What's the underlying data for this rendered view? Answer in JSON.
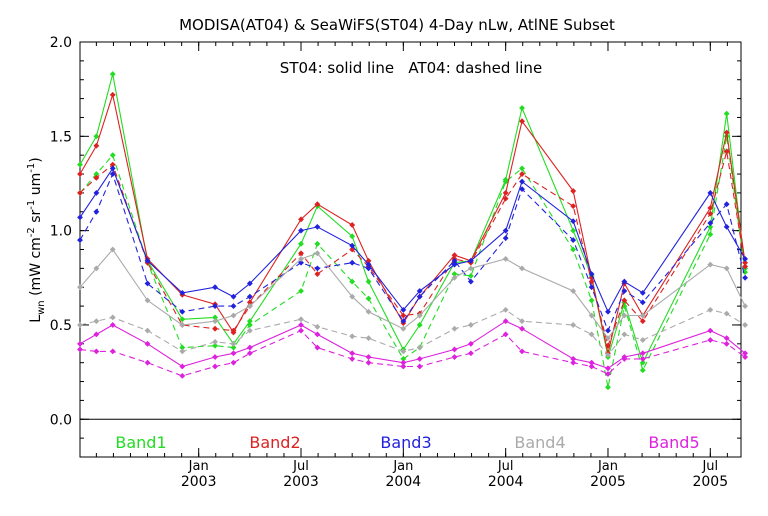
{
  "chart_data": {
    "type": "line",
    "title": "MODISA(AT04) & SeaWiFS(ST04) 4-Day nLw, AtlNE Subset",
    "annotation": "ST04: solid line   AT04: dashed line",
    "ylabel": "L_wn (mW cm^-2 sr^-1 um^-1)",
    "ylabel_parts": {
      "main": "L",
      "sub": "wn",
      "open": " (mW cm",
      "exp1": "-2",
      "mid": " sr",
      "exp2": "-1",
      "um": " um",
      "exp3": "-1",
      "close": ")"
    },
    "xlim": [
      2002.42,
      2005.65
    ],
    "ylim": [
      -0.2,
      2.0
    ],
    "yticks": [
      "0.0",
      "0.5",
      "1.0",
      "1.5",
      "2.0"
    ],
    "ytick_values": [
      0.0,
      0.5,
      1.0,
      1.5,
      2.0
    ],
    "xticks": [
      {
        "value": 2003.0,
        "month": "Jan",
        "year": "2003"
      },
      {
        "value": 2003.5,
        "month": "Jul",
        "year": "2003"
      },
      {
        "value": 2004.0,
        "month": "Jan",
        "year": "2004"
      },
      {
        "value": 2004.5,
        "month": "Jul",
        "year": "2004"
      },
      {
        "value": 2005.0,
        "month": "Jan",
        "year": "2005"
      },
      {
        "value": 2005.5,
        "month": "Jul",
        "year": "2005"
      }
    ],
    "zero_line": 0.0,
    "legend": "bottom-inside",
    "colors": {
      "Band1": "#22dd22",
      "Band2": "#dd2222",
      "Band3": "#2222dd",
      "Band4": "#aaaaaa",
      "Band5": "#dd22dd"
    },
    "series": [
      {
        "name": "Band1",
        "sensor": "ST04",
        "style": "solid",
        "x": [
          2002.42,
          2002.5,
          2002.58,
          2002.75,
          2002.92,
          2003.08,
          2003.17,
          2003.25,
          2003.5,
          2003.58,
          2003.75,
          2003.83,
          2004.0,
          2004.08,
          2004.25,
          2004.33,
          2004.5,
          2004.58,
          2004.83,
          2004.92,
          2005.0,
          2005.08,
          2005.17,
          2005.5,
          2005.58,
          2005.67
        ],
        "y": [
          1.35,
          1.5,
          1.83,
          0.84,
          0.53,
          0.54,
          0.4,
          0.52,
          0.93,
          1.13,
          0.97,
          0.73,
          0.37,
          0.5,
          0.83,
          0.84,
          1.27,
          1.65,
          1.0,
          0.76,
          0.33,
          0.62,
          0.3,
          1.02,
          1.62,
          0.8
        ]
      },
      {
        "name": "Band1",
        "sensor": "AT04",
        "style": "dashed",
        "x": [
          2002.42,
          2002.5,
          2002.58,
          2002.75,
          2002.92,
          2003.08,
          2003.17,
          2003.25,
          2003.5,
          2003.58,
          2003.75,
          2003.83,
          2004.0,
          2004.08,
          2004.25,
          2004.33,
          2004.5,
          2004.58,
          2004.83,
          2004.92,
          2005.0,
          2005.08,
          2005.17,
          2005.5,
          2005.58,
          2005.67
        ],
        "y": [
          1.2,
          1.3,
          1.4,
          0.83,
          0.38,
          0.39,
          0.38,
          0.5,
          0.68,
          0.93,
          0.73,
          0.64,
          0.32,
          0.38,
          0.77,
          0.76,
          1.26,
          1.33,
          0.9,
          0.63,
          0.17,
          0.6,
          0.26,
          0.98,
          1.5,
          0.78
        ]
      },
      {
        "name": "Band2",
        "sensor": "ST04",
        "style": "solid",
        "x": [
          2002.42,
          2002.5,
          2002.58,
          2002.75,
          2002.92,
          2003.08,
          2003.17,
          2003.25,
          2003.5,
          2003.58,
          2003.75,
          2003.83,
          2004.0,
          2004.08,
          2004.25,
          2004.33,
          2004.5,
          2004.58,
          2004.83,
          2004.92,
          2005.0,
          2005.08,
          2005.17,
          2005.5,
          2005.58,
          2005.67
        ],
        "y": [
          1.3,
          1.45,
          1.72,
          0.85,
          0.66,
          0.61,
          0.46,
          0.62,
          1.06,
          1.14,
          1.03,
          0.84,
          0.51,
          0.65,
          0.87,
          0.84,
          1.2,
          1.58,
          1.21,
          0.75,
          0.35,
          0.72,
          0.55,
          1.12,
          1.52,
          0.83
        ]
      },
      {
        "name": "Band2",
        "sensor": "AT04",
        "style": "dashed",
        "x": [
          2002.42,
          2002.5,
          2002.58,
          2002.75,
          2002.92,
          2003.08,
          2003.17,
          2003.25,
          2003.5,
          2003.58,
          2003.75,
          2003.83,
          2004.0,
          2004.08,
          2004.25,
          2004.33,
          2004.5,
          2004.58,
          2004.83,
          2004.92,
          2005.0,
          2005.08,
          2005.17,
          2005.5,
          2005.58,
          2005.67
        ],
        "y": [
          1.2,
          1.28,
          1.35,
          0.83,
          0.5,
          0.48,
          0.47,
          0.6,
          0.88,
          0.77,
          0.9,
          0.81,
          0.55,
          0.56,
          0.85,
          0.83,
          1.17,
          1.3,
          1.13,
          0.73,
          0.39,
          0.63,
          0.52,
          1.09,
          1.42,
          0.81
        ]
      },
      {
        "name": "Band3",
        "sensor": "ST04",
        "style": "solid",
        "x": [
          2002.42,
          2002.5,
          2002.58,
          2002.75,
          2002.92,
          2003.08,
          2003.17,
          2003.25,
          2003.5,
          2003.58,
          2003.75,
          2003.83,
          2004.0,
          2004.08,
          2004.25,
          2004.33,
          2004.5,
          2004.58,
          2004.83,
          2004.92,
          2005.0,
          2005.08,
          2005.17,
          2005.5,
          2005.58,
          2005.67
        ],
        "y": [
          1.07,
          1.2,
          1.33,
          0.84,
          0.67,
          0.7,
          0.65,
          0.72,
          1.0,
          1.02,
          0.92,
          0.82,
          0.58,
          0.68,
          0.82,
          0.84,
          1.0,
          1.26,
          1.05,
          0.77,
          0.57,
          0.73,
          0.67,
          1.2,
          1.02,
          0.85
        ]
      },
      {
        "name": "Band3",
        "sensor": "AT04",
        "style": "dashed",
        "x": [
          2002.42,
          2002.5,
          2002.58,
          2002.75,
          2002.92,
          2003.08,
          2003.17,
          2003.25,
          2003.5,
          2003.58,
          2003.75,
          2003.83,
          2004.0,
          2004.08,
          2004.25,
          2004.33,
          2004.5,
          2004.58,
          2004.83,
          2004.92,
          2005.0,
          2005.08,
          2005.17,
          2005.5,
          2005.58,
          2005.67
        ],
        "y": [
          0.95,
          1.1,
          1.3,
          0.72,
          0.57,
          0.6,
          0.6,
          0.65,
          0.83,
          0.8,
          0.83,
          0.8,
          0.52,
          0.65,
          0.84,
          0.73,
          0.96,
          1.22,
          0.95,
          0.7,
          0.47,
          0.68,
          0.62,
          1.04,
          1.14,
          0.75
        ]
      },
      {
        "name": "Band4",
        "sensor": "ST04",
        "style": "solid",
        "x": [
          2002.42,
          2002.5,
          2002.58,
          2002.75,
          2002.92,
          2003.08,
          2003.17,
          2003.25,
          2003.5,
          2003.58,
          2003.75,
          2003.83,
          2004.0,
          2004.08,
          2004.25,
          2004.33,
          2004.5,
          2004.58,
          2004.83,
          2004.92,
          2005.0,
          2005.08,
          2005.17,
          2005.5,
          2005.58,
          2005.67
        ],
        "y": [
          0.7,
          0.8,
          0.9,
          0.63,
          0.5,
          0.52,
          0.55,
          0.6,
          0.85,
          0.88,
          0.65,
          0.57,
          0.48,
          0.55,
          0.75,
          0.8,
          0.85,
          0.8,
          0.68,
          0.55,
          0.43,
          0.55,
          0.55,
          0.82,
          0.8,
          0.6
        ]
      },
      {
        "name": "Band4",
        "sensor": "AT04",
        "style": "dashed",
        "x": [
          2002.42,
          2002.5,
          2002.58,
          2002.75,
          2002.92,
          2003.08,
          2003.17,
          2003.25,
          2003.5,
          2003.58,
          2003.75,
          2003.83,
          2004.0,
          2004.08,
          2004.25,
          2004.33,
          2004.5,
          2004.58,
          2004.83,
          2004.92,
          2005.0,
          2005.08,
          2005.17,
          2005.5,
          2005.58,
          2005.67
        ],
        "y": [
          0.5,
          0.52,
          0.54,
          0.47,
          0.36,
          0.41,
          0.4,
          0.47,
          0.53,
          0.49,
          0.44,
          0.43,
          0.36,
          0.38,
          0.48,
          0.5,
          0.58,
          0.52,
          0.5,
          0.45,
          0.34,
          0.45,
          0.42,
          0.58,
          0.56,
          0.5
        ]
      },
      {
        "name": "Band5",
        "sensor": "ST04",
        "style": "solid",
        "x": [
          2002.42,
          2002.5,
          2002.58,
          2002.75,
          2002.92,
          2003.08,
          2003.17,
          2003.25,
          2003.5,
          2003.58,
          2003.75,
          2003.83,
          2004.0,
          2004.08,
          2004.25,
          2004.33,
          2004.5,
          2004.58,
          2004.83,
          2004.92,
          2005.0,
          2005.08,
          2005.17,
          2005.5,
          2005.58,
          2005.67
        ],
        "y": [
          0.4,
          0.45,
          0.5,
          0.4,
          0.28,
          0.33,
          0.35,
          0.38,
          0.5,
          0.45,
          0.35,
          0.33,
          0.3,
          0.32,
          0.37,
          0.4,
          0.52,
          0.48,
          0.32,
          0.3,
          0.27,
          0.33,
          0.35,
          0.47,
          0.43,
          0.35
        ]
      },
      {
        "name": "Band5",
        "sensor": "AT04",
        "style": "dashed",
        "x": [
          2002.42,
          2002.5,
          2002.58,
          2002.75,
          2002.92,
          2003.08,
          2003.17,
          2003.25,
          2003.5,
          2003.58,
          2003.75,
          2003.83,
          2004.0,
          2004.08,
          2004.25,
          2004.33,
          2004.5,
          2004.58,
          2004.83,
          2004.92,
          2005.0,
          2005.08,
          2005.17,
          2005.5,
          2005.58,
          2005.67
        ],
        "y": [
          0.37,
          0.36,
          0.36,
          0.3,
          0.23,
          0.28,
          0.3,
          0.35,
          0.47,
          0.38,
          0.32,
          0.3,
          0.28,
          0.28,
          0.33,
          0.35,
          0.45,
          0.36,
          0.3,
          0.28,
          0.24,
          0.32,
          0.32,
          0.42,
          0.4,
          0.33
        ]
      }
    ]
  }
}
